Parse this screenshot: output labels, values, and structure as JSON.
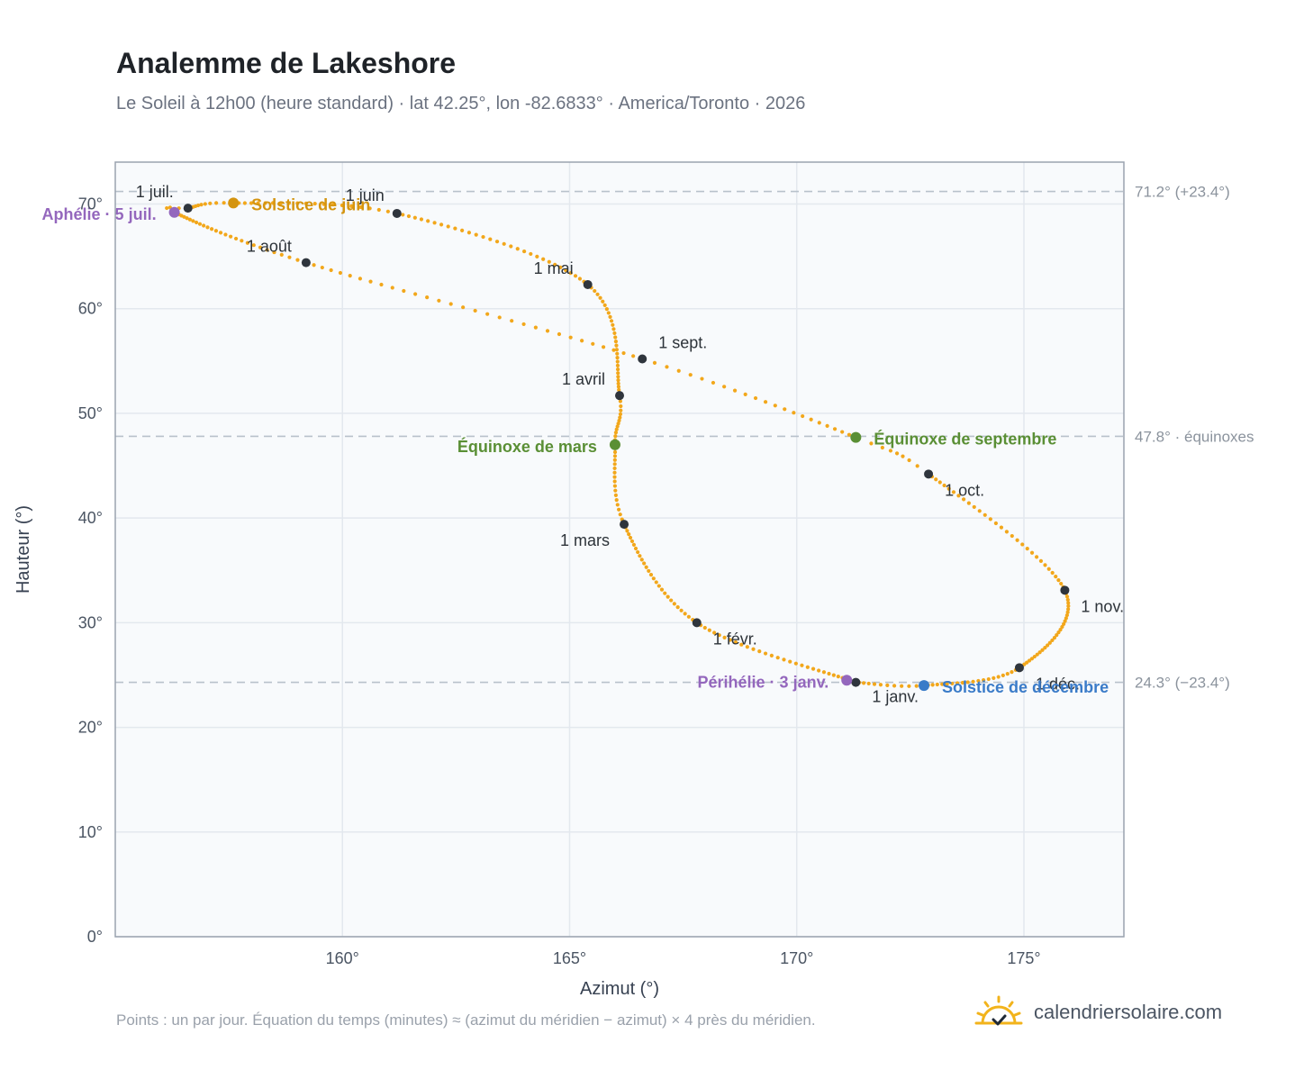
{
  "title": "Analemme de Lakeshore",
  "subtitle": "Le Soleil à 12h00 (heure standard) · lat 42.25°, lon -82.6833° · America/Toronto · 2026",
  "footnote": "Points : un par jour. Équation du temps (minutes) ≈ (azimut du méridien − azimut) × 4 près du méridien.",
  "brand": {
    "name": "calendriersolaire.com",
    "icon": "sun-check-icon"
  },
  "chart_data": {
    "type": "scatter",
    "xlabel": "Azimut (°)",
    "ylabel": "Hauteur (°)",
    "xlim": [
      155,
      177.2
    ],
    "ylim": [
      0,
      74
    ],
    "xticks": [
      160,
      165,
      170,
      175
    ],
    "xtick_labels": [
      "160°",
      "165°",
      "170°",
      "175°"
    ],
    "yticks": [
      0,
      10,
      20,
      30,
      40,
      50,
      60,
      70
    ],
    "ytick_labels": [
      "0°",
      "10°",
      "20°",
      "30°",
      "40°",
      "50°",
      "60°",
      "70°"
    ],
    "grid": true,
    "colors": {
      "path": "#f2a71b",
      "month": "#2f353d",
      "solstice_june": "#d4940f",
      "solstice_december": "#3a7bc8",
      "equinox": "#5a8f35",
      "apsis": "#9467bd",
      "reference": "#b8c1cb",
      "plot_bg": "#f8fafc",
      "plot_border": "#9aa3af"
    },
    "reference_lines": [
      {
        "altitude": 71.2,
        "label": "71.2° (+23.4°)"
      },
      {
        "altitude": 47.8,
        "label": "47.8° · équinoxes"
      },
      {
        "altitude": 24.3,
        "label": "24.3° (−23.4°)"
      }
    ],
    "path_knots": [
      {
        "day": 1,
        "az": 171.3,
        "alt": 24.3
      },
      {
        "day": 32,
        "az": 167.8,
        "alt": 30.0
      },
      {
        "day": 60,
        "az": 166.2,
        "alt": 39.4
      },
      {
        "day": 78,
        "az": 166.0,
        "alt": 47.0
      },
      {
        "day": 91,
        "az": 166.1,
        "alt": 51.7
      },
      {
        "day": 121,
        "az": 165.4,
        "alt": 62.3
      },
      {
        "day": 152,
        "az": 161.2,
        "alt": 69.1
      },
      {
        "day": 172,
        "az": 157.6,
        "alt": 70.1
      },
      {
        "day": 182,
        "az": 156.6,
        "alt": 69.6
      },
      {
        "day": 186,
        "az": 156.3,
        "alt": 69.2
      },
      {
        "day": 213,
        "az": 159.2,
        "alt": 64.4
      },
      {
        "day": 244,
        "az": 166.6,
        "alt": 55.2
      },
      {
        "day": 266,
        "az": 171.3,
        "alt": 47.7
      },
      {
        "day": 274,
        "az": 172.9,
        "alt": 44.2
      },
      {
        "day": 305,
        "az": 175.9,
        "alt": 33.1
      },
      {
        "day": 335,
        "az": 174.9,
        "alt": 25.7
      },
      {
        "day": 355,
        "az": 172.8,
        "alt": 24.0
      },
      {
        "day": 366,
        "az": 171.3,
        "alt": 24.3
      }
    ],
    "months": [
      {
        "label": "1 janv.",
        "az": 171.3,
        "alt": 24.3
      },
      {
        "label": "1 févr.",
        "az": 167.8,
        "alt": 30.0
      },
      {
        "label": "1 mars",
        "az": 166.2,
        "alt": 39.4
      },
      {
        "label": "1 avril",
        "az": 166.1,
        "alt": 51.7
      },
      {
        "label": "1 mai",
        "az": 165.4,
        "alt": 62.3
      },
      {
        "label": "1 juin",
        "az": 161.2,
        "alt": 69.1
      },
      {
        "label": "1 juil.",
        "az": 156.6,
        "alt": 69.6
      },
      {
        "label": "1 août",
        "az": 159.2,
        "alt": 64.4
      },
      {
        "label": "1 sept.",
        "az": 166.6,
        "alt": 55.2
      },
      {
        "label": "1 oct.",
        "az": 172.9,
        "alt": 44.2
      },
      {
        "label": "1 nov.",
        "az": 175.9,
        "alt": 33.1
      },
      {
        "label": "1 déc.",
        "az": 174.9,
        "alt": 25.7
      }
    ],
    "events": [
      {
        "label": "Solstice de juin",
        "az": 157.6,
        "alt": 70.1,
        "color": "#d4940f"
      },
      {
        "label": "Solstice de décembre",
        "az": 172.8,
        "alt": 24.0,
        "color": "#3a7bc8"
      },
      {
        "label": "Équinoxe de mars",
        "az": 166.0,
        "alt": 47.0,
        "color": "#5a8f35"
      },
      {
        "label": "Équinoxe de septembre",
        "az": 171.3,
        "alt": 47.7,
        "color": "#5a8f35"
      },
      {
        "label": "Aphélie · 5 juil.",
        "az": 156.3,
        "alt": 69.2,
        "color": "#9467bd"
      },
      {
        "label": "Périhélie · 3 janv.",
        "az": 171.1,
        "alt": 24.5,
        "color": "#9467bd"
      }
    ]
  }
}
